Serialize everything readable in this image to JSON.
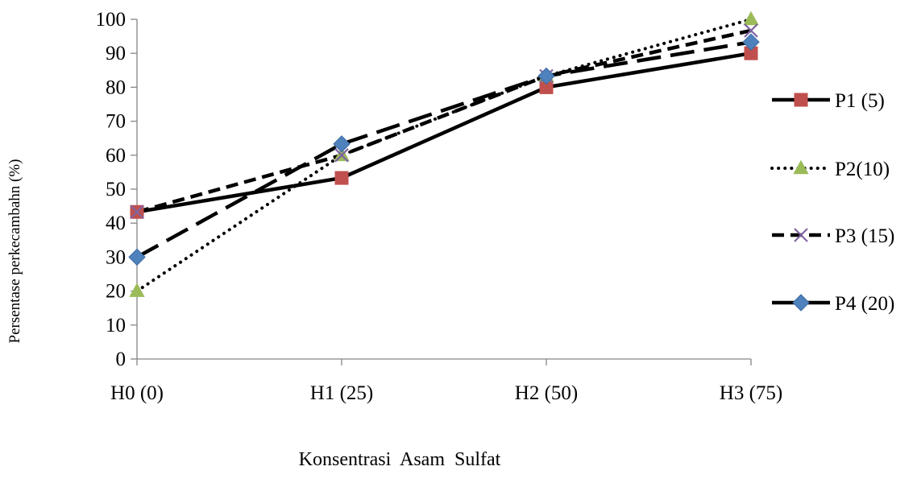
{
  "chart_data": {
    "type": "line",
    "title": "",
    "xlabel": "Konsentrasi  Asam  Sulfat",
    "ylabel": "Persentase perkecambahn (%)",
    "categories": [
      "H0 (0)",
      "H1 (25)",
      "H2 (50)",
      "H3 (75)"
    ],
    "ylim": [
      0,
      100
    ],
    "yticks": [
      0,
      10,
      20,
      30,
      40,
      50,
      60,
      70,
      80,
      90,
      100
    ],
    "grid": false,
    "legend_position": "right",
    "series": [
      {
        "name": "P1 (5)",
        "values": [
          43.3,
          53.3,
          80,
          90
        ],
        "color": "#000000",
        "marker_color": "#c0504d",
        "marker": "square",
        "dash": "solid"
      },
      {
        "name": "P2(10)",
        "values": [
          20,
          60,
          83.3,
          100
        ],
        "color": "#000000",
        "marker_color": "#9bbb59",
        "marker": "triangle",
        "dash": "dotted"
      },
      {
        "name": "P3 (15)",
        "values": [
          43.3,
          60,
          83.3,
          96.7
        ],
        "color": "#000000",
        "marker_color": "#8064a2",
        "marker": "x",
        "dash": "short-dash"
      },
      {
        "name": "P4 (20)",
        "values": [
          30,
          63.3,
          83.3,
          93.3
        ],
        "color": "#000000",
        "marker_color": "#4f81bd",
        "marker": "diamond",
        "dash": "long-dash"
      }
    ]
  }
}
